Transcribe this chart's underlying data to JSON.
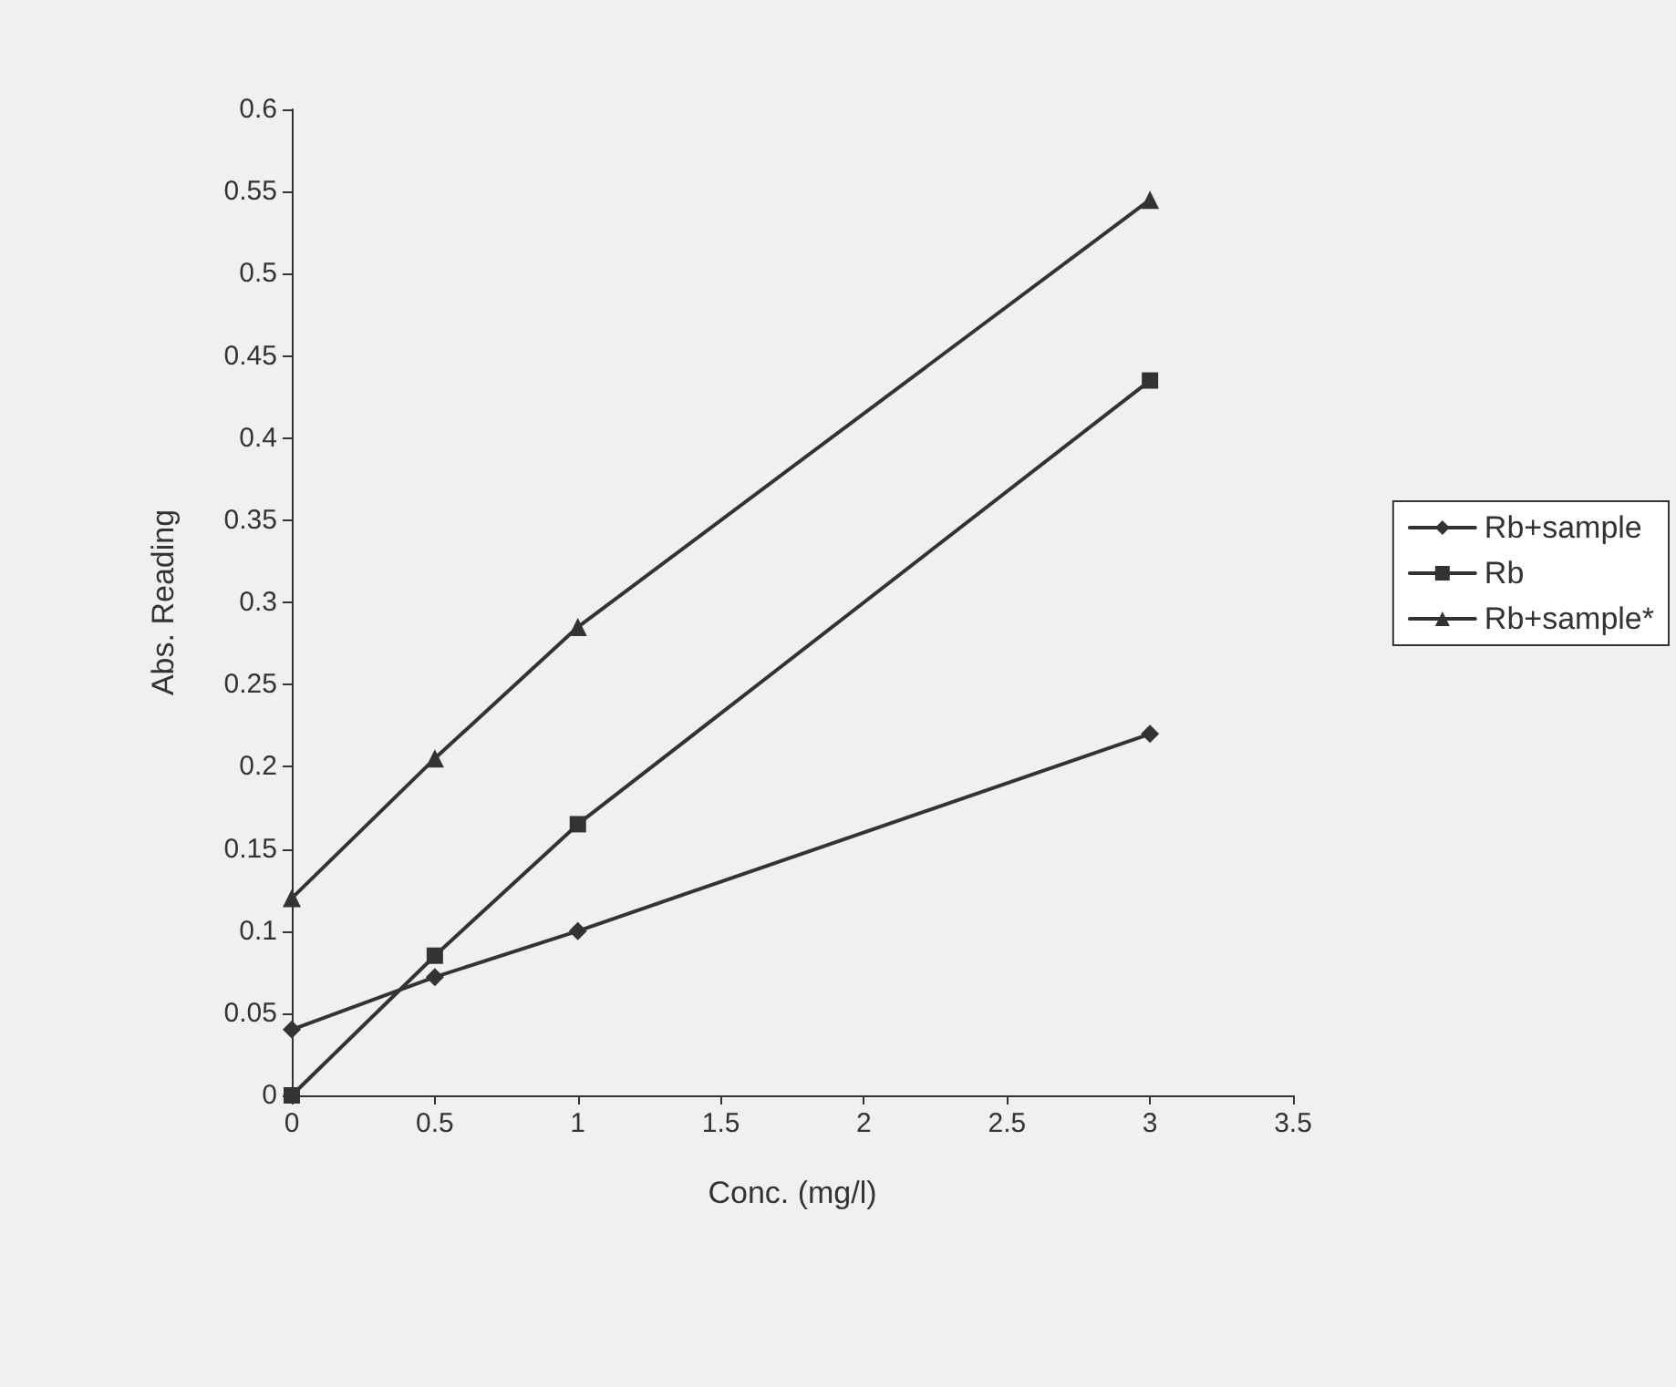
{
  "chart_data": {
    "type": "line",
    "xlabel": "Conc. (mg/l)",
    "ylabel": "Abs. Reading",
    "xlim": [
      0,
      3.5
    ],
    "xticks": [
      0,
      0.5,
      1,
      1.5,
      2,
      2.5,
      3,
      3.5
    ],
    "ylim": [
      0,
      0.6
    ],
    "yticks": [
      0,
      0.05,
      0.1,
      0.15,
      0.2,
      0.25,
      0.3,
      0.35,
      0.4,
      0.45,
      0.5,
      0.55,
      0.6
    ],
    "grid": false,
    "legend": "right",
    "x": [
      0,
      0.5,
      1,
      3
    ],
    "series": [
      {
        "name": "Rb+sample",
        "color": "#333333",
        "marker": "diamond",
        "values": [
          0.04,
          0.072,
          0.1,
          0.22
        ]
      },
      {
        "name": "Rb",
        "color": "#333333",
        "marker": "square",
        "values": [
          0,
          0.085,
          0.165,
          0.435
        ]
      },
      {
        "name": "Rb+sample*",
        "color": "#333333",
        "marker": "triangle",
        "values": [
          0.12,
          0.205,
          0.285,
          0.545
        ]
      }
    ]
  }
}
